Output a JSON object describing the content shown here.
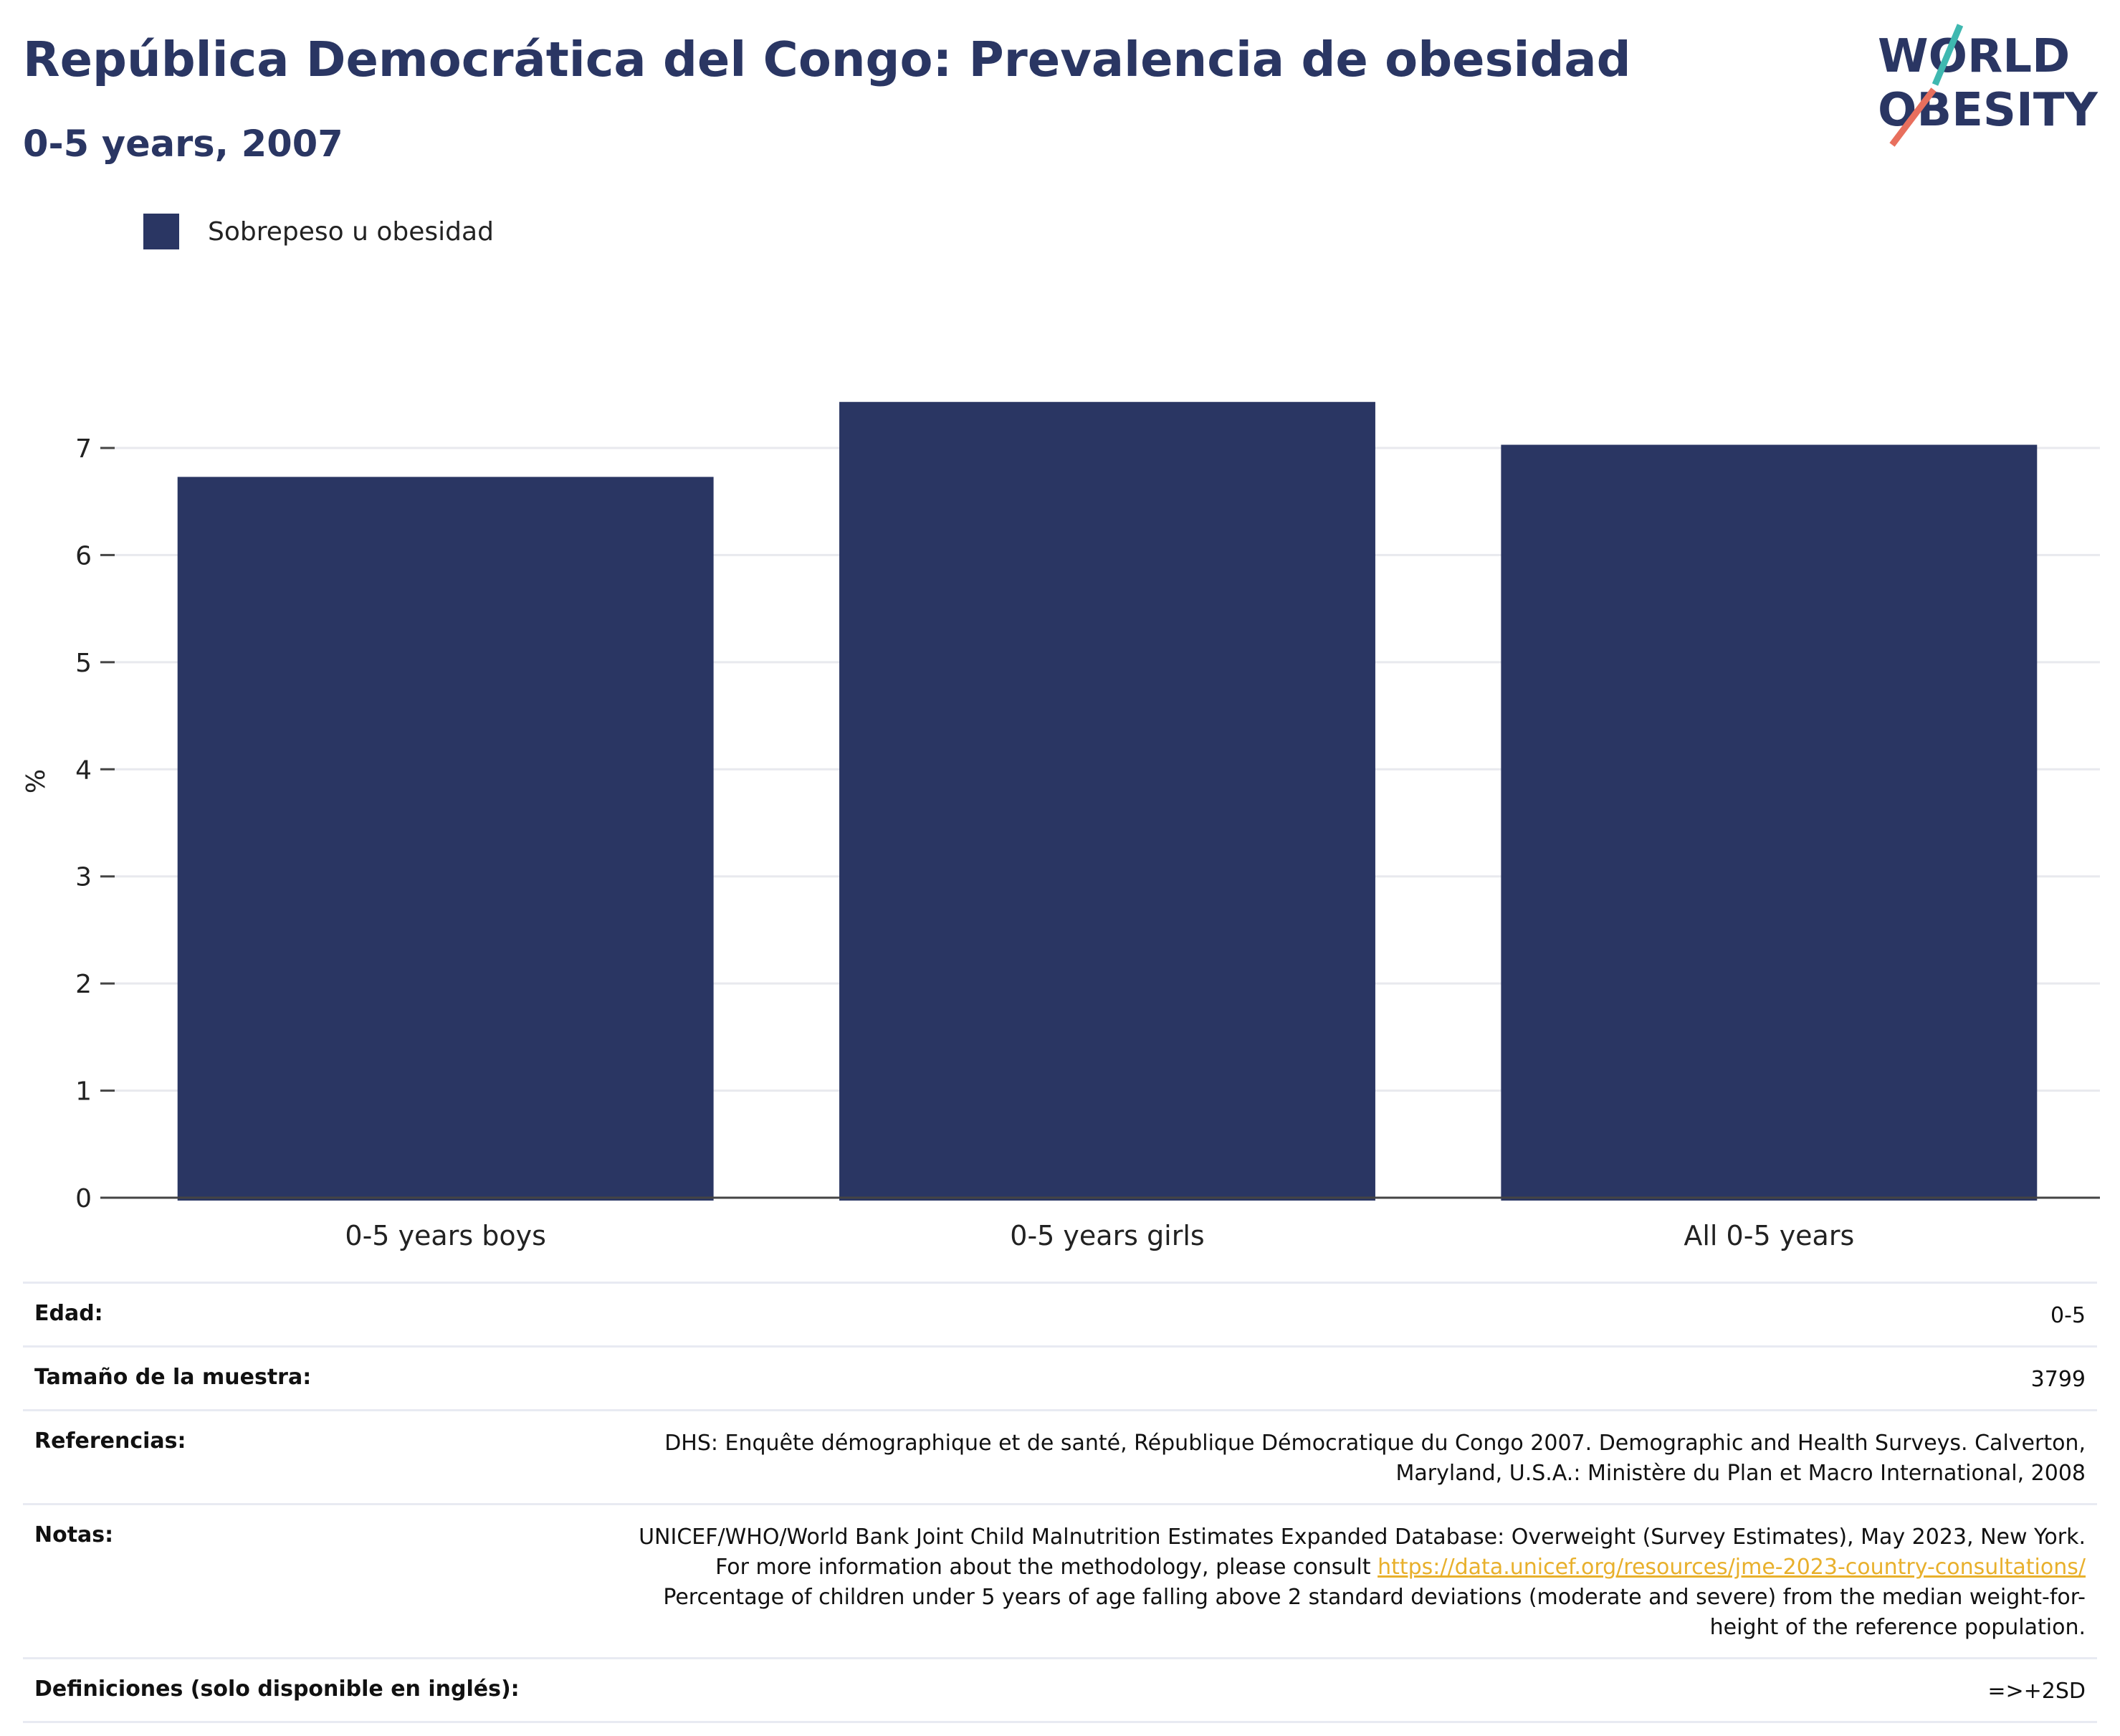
{
  "header": {
    "title": "República Democrática del Congo: Prevalencia de obesidad",
    "subtitle": "0-5 years, 2007"
  },
  "logo": {
    "line1": "WORLD",
    "line2": "OBESITY",
    "colors": {
      "text": "#2a3663",
      "slash_teal": "#3fb8b0",
      "slash_coral": "#e86f5d"
    }
  },
  "legend": {
    "label": "Sobrepeso u obesidad",
    "color": "#2a3663"
  },
  "chart_data": {
    "type": "bar",
    "categories": [
      "0-5 years boys",
      "0-5 years girls",
      "All 0-5 years"
    ],
    "series": [
      {
        "name": "Sobrepeso u obesidad",
        "values": [
          6.73,
          7.43,
          7.03
        ],
        "color": "#2a3663"
      }
    ],
    "ylabel": "%",
    "ylim": [
      0,
      7.5
    ],
    "yticks": [
      0,
      1,
      2,
      3,
      4,
      5,
      6,
      7
    ],
    "grid": true,
    "legend_position": "top-left"
  },
  "info": {
    "rows": [
      {
        "label": "Edad:",
        "value": "0-5"
      },
      {
        "label": "Tamaño de la muestra:",
        "value": "3799"
      },
      {
        "label": "Referencias:",
        "value": "DHS: Enquête démographique et de santé, République Démocratique du Congo 2007. Demographic and Health Surveys. Calverton, Maryland, U.S.A.: Ministère du Plan et Macro International, 2008"
      },
      {
        "label": "Notas:",
        "value": "UNICEF/WHO/World Bank Joint Child Malnutrition Estimates Expanded Database: Overweight (Survey Estimates), May 2023, New York. For more information about the methodology, please consult",
        "link": "https://data.unicef.org/resources/jme-2023-country-consultations/",
        "value_after": "Percentage of children under 5 years of age falling above 2 standard deviations (moderate and severe) from the median weight-for-height of the reference population."
      },
      {
        "label": "Definiciones (solo disponible en inglés):",
        "value": "=>+2SD"
      }
    ]
  }
}
